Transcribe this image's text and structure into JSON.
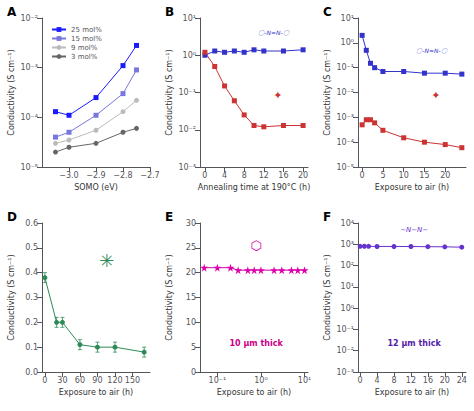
{
  "chart_data": [
    {
      "type": "line",
      "title": "A",
      "xlabel": "SOMO (eV)",
      "ylabel": "Conductivity (S cm⁻¹)",
      "log": "y",
      "grid": false,
      "legend": "upper left",
      "xlim": [
        -3.1,
        -2.7
      ],
      "xticks": [
        {
          "value": -3.0,
          "label": "−3.0"
        },
        {
          "value": -2.9,
          "label": "−2.9"
        },
        {
          "value": -2.8,
          "label": "−2.8"
        },
        {
          "value": -2.7,
          "label": "−2.7"
        }
      ],
      "ylim": [
        1e-05,
        0.01
      ],
      "yticks": [
        {
          "value": 1e-05,
          "label": "10⁻⁵"
        },
        {
          "value": 0.0001,
          "label": "10⁻⁴"
        },
        {
          "value": 0.001,
          "label": "10⁻³"
        },
        {
          "value": 0.01,
          "label": "10⁻²"
        }
      ],
      "series": [
        {
          "name": "25 mol%",
          "color": "#1a1aff",
          "marker": "square",
          "x": [
            -3.05,
            -3.0,
            -2.9,
            -2.8,
            -2.75
          ],
          "values": [
            0.00013,
            0.00011,
            0.00025,
            0.0011,
            0.0028
          ]
        },
        {
          "name": "15 mol%",
          "color": "#7777dd",
          "marker": "square",
          "x": [
            -3.05,
            -3.0,
            -2.9,
            -2.8,
            -2.75
          ],
          "values": [
            4e-05,
            5e-05,
            0.00011,
            0.0003,
            0.0009
          ]
        },
        {
          "name": "9 mol%",
          "color": "#bbbbbb",
          "marker": "circle",
          "x": [
            -3.05,
            -3.0,
            -2.9,
            -2.8,
            -2.75
          ],
          "values": [
            3e-05,
            3.5e-05,
            5.5e-05,
            0.00013,
            0.00022
          ]
        },
        {
          "name": "3 mol%",
          "color": "#666666",
          "marker": "circle",
          "x": [
            -3.05,
            -3.0,
            -2.9,
            -2.8,
            -2.75
          ],
          "values": [
            2e-05,
            2.5e-05,
            3e-05,
            5e-05,
            6e-05
          ]
        }
      ]
    },
    {
      "type": "line",
      "title": "B",
      "xlabel": "Annealing time at 190°C (h)",
      "ylabel": "Conductivity (S cm⁻¹)",
      "log": "y",
      "grid": false,
      "xlim": [
        -1,
        21
      ],
      "xticks": [
        0,
        4,
        8,
        12,
        16,
        20
      ],
      "ylim": [
        0.001,
        10
      ],
      "yticks": [
        {
          "value": 0.001,
          "label": "10⁻³"
        },
        {
          "value": 0.01,
          "label": "10⁻²"
        },
        {
          "value": 0.1,
          "label": "10⁻¹"
        },
        {
          "value": 1,
          "label": "10⁰"
        },
        {
          "value": 10,
          "label": "10¹"
        }
      ],
      "series": [
        {
          "color": "#3333cc",
          "marker": "square",
          "x": [
            0,
            2,
            4,
            6,
            8,
            10,
            12,
            16,
            20
          ],
          "values": [
            1.0,
            1.3,
            1.2,
            1.3,
            1.2,
            1.4,
            1.3,
            1.3,
            1.4
          ]
        },
        {
          "color": "#cc3333",
          "marker": "square",
          "x": [
            0,
            2,
            4,
            6,
            8,
            10,
            12,
            16,
            20
          ],
          "values": [
            1.2,
            0.5,
            0.15,
            0.06,
            0.025,
            0.013,
            0.012,
            0.013,
            0.013
          ]
        }
      ],
      "annotations": [
        {
          "text": "〇-N=N-〇",
          "color": "#3333cc"
        },
        {
          "text": "✦",
          "color": "#cc3333"
        }
      ]
    },
    {
      "type": "line",
      "title": "C",
      "xlabel": "Exposure to air (h)",
      "ylabel": "Conductivity (S cm⁻¹)",
      "log": "y",
      "grid": false,
      "xlim": [
        -1,
        25
      ],
      "xticks": [
        0,
        5,
        10,
        15,
        20
      ],
      "ylim": [
        1e-05,
        10
      ],
      "yticks": [
        {
          "value": 1e-05,
          "label": "10⁻⁵"
        },
        {
          "value": 0.0001,
          "label": "10⁻⁴"
        },
        {
          "value": 0.001,
          "label": "10⁻³"
        },
        {
          "value": 0.01,
          "label": "10⁻²"
        },
        {
          "value": 0.1,
          "label": "10⁻¹"
        },
        {
          "value": 1,
          "label": "10⁰"
        },
        {
          "value": 10,
          "label": "10¹"
        }
      ],
      "series": [
        {
          "color": "#3333cc",
          "marker": "square",
          "x": [
            0,
            1,
            2,
            3,
            5,
            10,
            15,
            20,
            24
          ],
          "values": [
            2.0,
            0.5,
            0.15,
            0.1,
            0.07,
            0.07,
            0.06,
            0.06,
            0.055
          ]
        },
        {
          "color": "#cc3333",
          "marker": "square",
          "x": [
            0,
            1,
            2,
            3,
            5,
            10,
            15,
            20,
            24
          ],
          "values": [
            0.0005,
            0.0008,
            0.0008,
            0.0006,
            0.0003,
            0.00015,
            0.0001,
            8e-05,
            6e-05
          ]
        }
      ],
      "annotations": [
        {
          "text": "〇-N=N-〇",
          "color": "#3333cc"
        },
        {
          "text": "✦",
          "color": "#cc3333"
        }
      ]
    },
    {
      "type": "line",
      "title": "D",
      "xlabel": "Exposure to air (h)",
      "ylabel": "Conductivity (S cm⁻¹)",
      "grid": false,
      "xlim": [
        -5,
        180
      ],
      "xticks": [
        0,
        30,
        60,
        90,
        120,
        150
      ],
      "ylim": [
        0,
        0.6
      ],
      "yticks": [
        {
          "value": 0,
          "label": "0.0"
        },
        0.1,
        0.2,
        0.3,
        0.4,
        0.5,
        0.6
      ],
      "series": [
        {
          "color": "#2e8b57",
          "marker": "circle",
          "x": [
            0,
            20,
            30,
            60,
            90,
            120,
            170
          ],
          "values": [
            0.38,
            0.2,
            0.2,
            0.11,
            0.1,
            0.1,
            0.08
          ],
          "errors": [
            0.02,
            0.02,
            0.02,
            0.02,
            0.02,
            0.02,
            0.02
          ]
        }
      ],
      "annotations": [
        {
          "text": "✳",
          "color": "#2e8b57"
        }
      ]
    },
    {
      "type": "line",
      "title": "E",
      "xlabel": "Exposure to air (h)",
      "ylabel": "Conductivity (S cm⁻¹)",
      "log": "x",
      "grid": false,
      "xlim": [
        0.04,
        12
      ],
      "xticks": [
        {
          "value": 0.1,
          "label": "10⁻¹"
        },
        {
          "value": 1,
          "label": "10⁰"
        },
        {
          "value": 10,
          "label": "10¹"
        }
      ],
      "ylim": [
        0,
        30
      ],
      "yticks": [
        0,
        5,
        10,
        15,
        20,
        25,
        30
      ],
      "series": [
        {
          "color": "#dd00aa",
          "marker": "star",
          "x": [
            0.05,
            0.1,
            0.2,
            0.3,
            0.5,
            0.7,
            1,
            2,
            3,
            5,
            7,
            10
          ],
          "values": [
            21,
            21,
            21,
            20.5,
            20.5,
            20.5,
            20.5,
            20.5,
            20.5,
            20.5,
            20.5,
            20.5
          ]
        }
      ],
      "annotations": [
        {
          "text": "10 μm thick",
          "color": "#cc0088"
        },
        {
          "text": "⬡",
          "color": "#dd00aa"
        }
      ]
    },
    {
      "type": "line",
      "title": "F",
      "xlabel": "Exposure to air (h)",
      "ylabel": "Conductivity (S cm⁻¹)",
      "log": "y",
      "grid": false,
      "xlim": [
        -0.5,
        25
      ],
      "xticks": [
        0,
        4,
        8,
        12,
        16,
        20,
        24
      ],
      "ylim": [
        0.001,
        10000.0
      ],
      "yticks": [
        {
          "value": 0.001,
          "label": "10⁻³"
        },
        {
          "value": 0.01,
          "label": "10⁻²"
        },
        {
          "value": 0.1,
          "label": "10⁻¹"
        },
        {
          "value": 1,
          "label": "10⁰"
        },
        {
          "value": 10,
          "label": "10¹"
        },
        {
          "value": 100,
          "label": "10²"
        },
        {
          "value": 1000,
          "label": "10³"
        },
        {
          "value": 10000,
          "label": "10⁴"
        }
      ],
      "series": [
        {
          "color": "#6633cc",
          "marker": "circle",
          "x": [
            0,
            1,
            2,
            4,
            8,
            12,
            16,
            20,
            24
          ],
          "values": [
            800,
            810,
            800,
            790,
            790,
            785,
            770,
            760,
            730
          ]
        }
      ],
      "annotations": [
        {
          "text": "12 μm thick",
          "color": "#5522aa"
        },
        {
          "text": "~N~N~",
          "color": "#6633cc"
        }
      ]
    }
  ]
}
